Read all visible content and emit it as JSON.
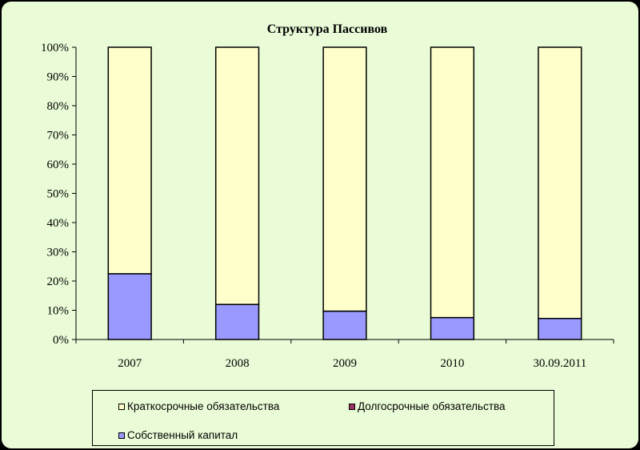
{
  "chart_data": {
    "type": "bar",
    "stacked": true,
    "percent": true,
    "title": "Структура Пассивов",
    "xlabel": "",
    "ylabel": "",
    "categories": [
      "2007",
      "2008",
      "2009",
      "2010",
      "30.09.2011"
    ],
    "ylim": [
      0,
      100
    ],
    "ytick_labels": [
      "0%",
      "10%",
      "20%",
      "30%",
      "40%",
      "50%",
      "60%",
      "70%",
      "80%",
      "90%",
      "100%"
    ],
    "grid": false,
    "legend_position": "bottom",
    "series": [
      {
        "name": "Собственный капитал",
        "values": [
          22.5,
          12,
          9.7,
          7.5,
          7.2
        ],
        "color": "#9999ff"
      },
      {
        "name": "Долгосрочные обязательства",
        "values": [
          0,
          0,
          0,
          0,
          0
        ],
        "color": "#993366"
      },
      {
        "name": "Краткосрочные обязательства",
        "values": [
          77.5,
          88,
          90.3,
          92.5,
          92.8
        ],
        "color": "#ffffcc"
      }
    ],
    "background_color": "#eafcd7"
  },
  "legend": {
    "items": [
      {
        "label": "Краткосрочные обязательства",
        "color": "#ffffcc"
      },
      {
        "label": "Долгосрочные обязательства",
        "color": "#993366"
      },
      {
        "label": "Собственный капитал",
        "color": "#9999ff"
      }
    ]
  }
}
